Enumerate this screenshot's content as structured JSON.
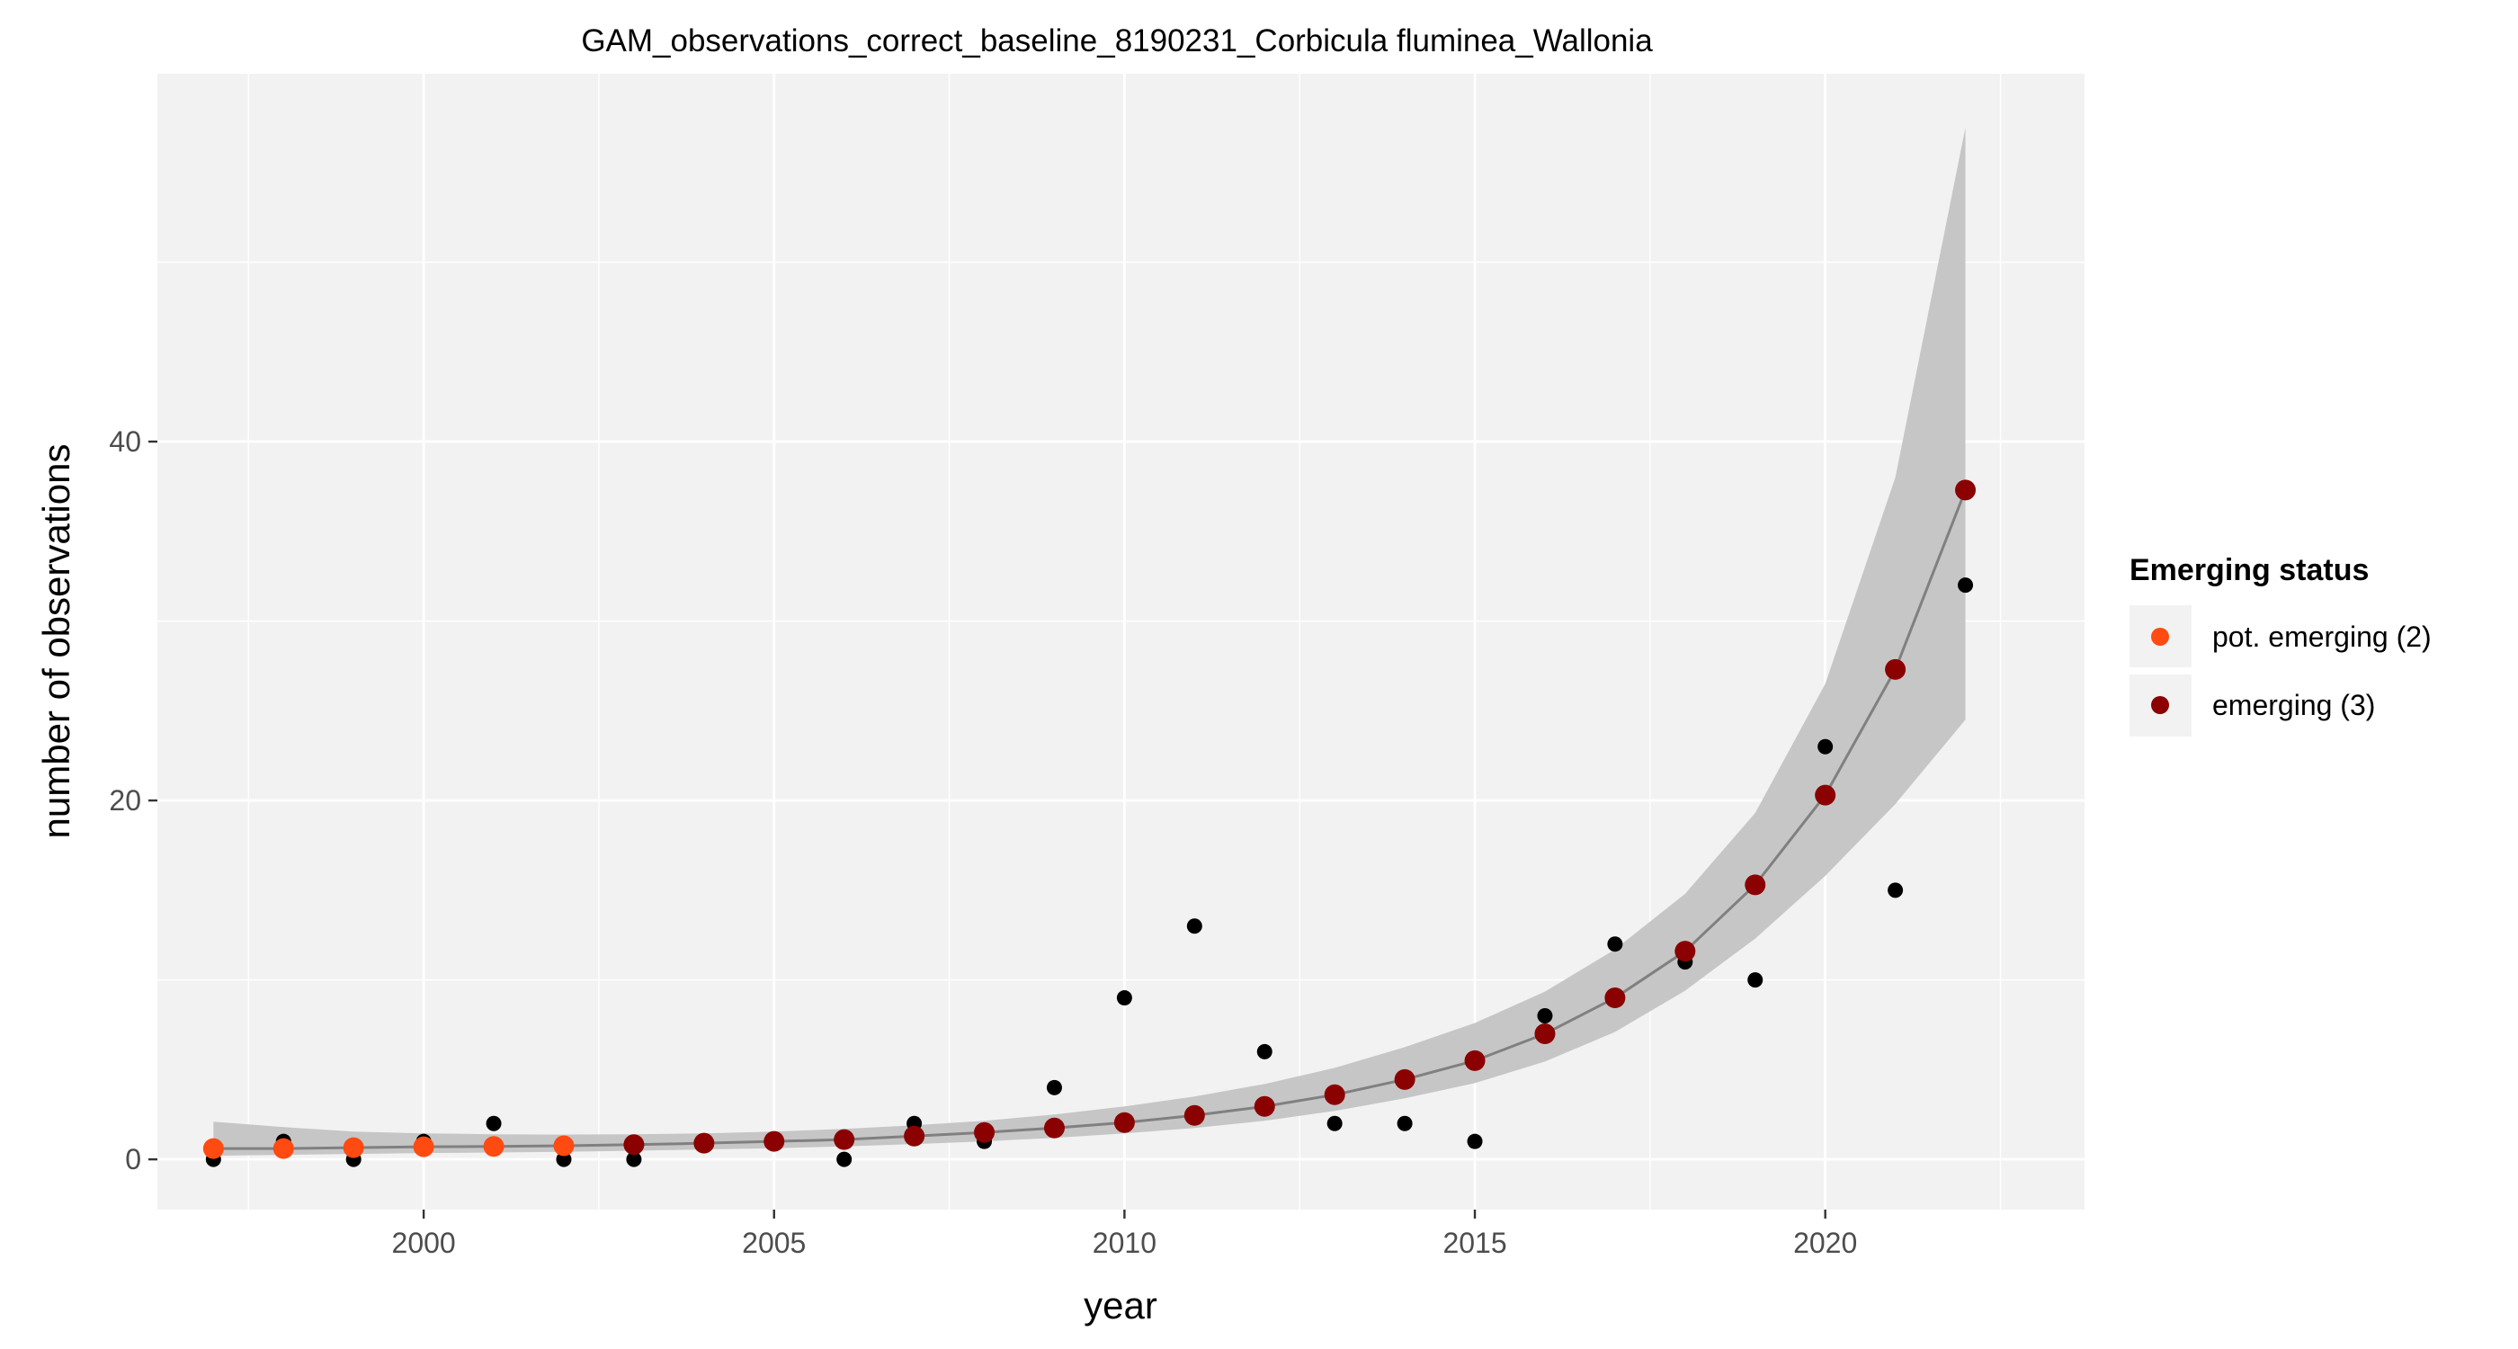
{
  "chart_data": {
    "type": "scatter",
    "title": "GAM_observations_correct_baseline_8190231_Corbicula fluminea_Wallonia",
    "xlabel": "year",
    "ylabel": "number of observations",
    "xlim": [
      1996.2,
      2023.7
    ],
    "ylim": [
      -2.8,
      60.5
    ],
    "x_ticks": [
      2000,
      2005,
      2010,
      2015,
      2020
    ],
    "y_ticks": [
      0,
      20,
      40
    ],
    "grid": true,
    "legend_position": "right",
    "legend_title": "Emerging status",
    "legend": [
      {
        "label": "pot. emerging (2)",
        "color": "#ff4a11"
      },
      {
        "label": "emerging (3)",
        "color": "#8b0000"
      }
    ],
    "colors": {
      "panel_background": "#f2f2f2",
      "grid": "#ffffff",
      "observed_points": "#000000",
      "fit_line": "#808080",
      "confidence_band": "#c6c6c6",
      "pot_emerging": "#ff4a11",
      "emerging": "#8b0000"
    },
    "years": [
      1997,
      1998,
      1999,
      2000,
      2001,
      2002,
      2003,
      2004,
      2005,
      2006,
      2007,
      2008,
      2009,
      2010,
      2011,
      2012,
      2013,
      2014,
      2015,
      2016,
      2017,
      2018,
      2019,
      2020,
      2021,
      2022
    ],
    "observed": [
      0,
      1,
      0,
      1,
      2,
      0,
      0,
      1,
      1,
      0,
      2,
      1,
      4,
      9,
      13,
      6,
      2,
      2,
      1,
      8,
      12,
      11,
      10,
      23,
      15,
      32
    ],
    "fitted": [
      0.6,
      0.6,
      0.65,
      0.7,
      0.72,
      0.76,
      0.82,
      0.9,
      1.0,
      1.1,
      1.3,
      1.5,
      1.75,
      2.05,
      2.45,
      2.95,
      3.6,
      4.45,
      5.5,
      7.0,
      9.0,
      11.6,
      15.3,
      20.3,
      27.3,
      37.3
    ],
    "ci_lower": [
      0.2,
      0.25,
      0.3,
      0.35,
      0.38,
      0.42,
      0.48,
      0.55,
      0.62,
      0.72,
      0.85,
      1.0,
      1.2,
      1.45,
      1.75,
      2.15,
      2.7,
      3.4,
      4.25,
      5.45,
      7.1,
      9.4,
      12.3,
      15.8,
      19.8,
      24.5
    ],
    "ci_upper": [
      2.1,
      1.8,
      1.55,
      1.45,
      1.4,
      1.38,
      1.4,
      1.45,
      1.55,
      1.7,
      1.9,
      2.15,
      2.5,
      2.95,
      3.5,
      4.2,
      5.1,
      6.25,
      7.6,
      9.35,
      11.7,
      14.8,
      19.3,
      26.5,
      38.0,
      57.5
    ],
    "status": [
      "pot. emerging (2)",
      "pot. emerging (2)",
      "pot. emerging (2)",
      "pot. emerging (2)",
      "pot. emerging (2)",
      "pot. emerging (2)",
      "emerging (3)",
      "emerging (3)",
      "emerging (3)",
      "emerging (3)",
      "emerging (3)",
      "emerging (3)",
      "emerging (3)",
      "emerging (3)",
      "emerging (3)",
      "emerging (3)",
      "emerging (3)",
      "emerging (3)",
      "emerging (3)",
      "emerging (3)",
      "emerging (3)",
      "emerging (3)",
      "emerging (3)",
      "emerging (3)",
      "emerging (3)",
      "emerging (3)"
    ]
  }
}
